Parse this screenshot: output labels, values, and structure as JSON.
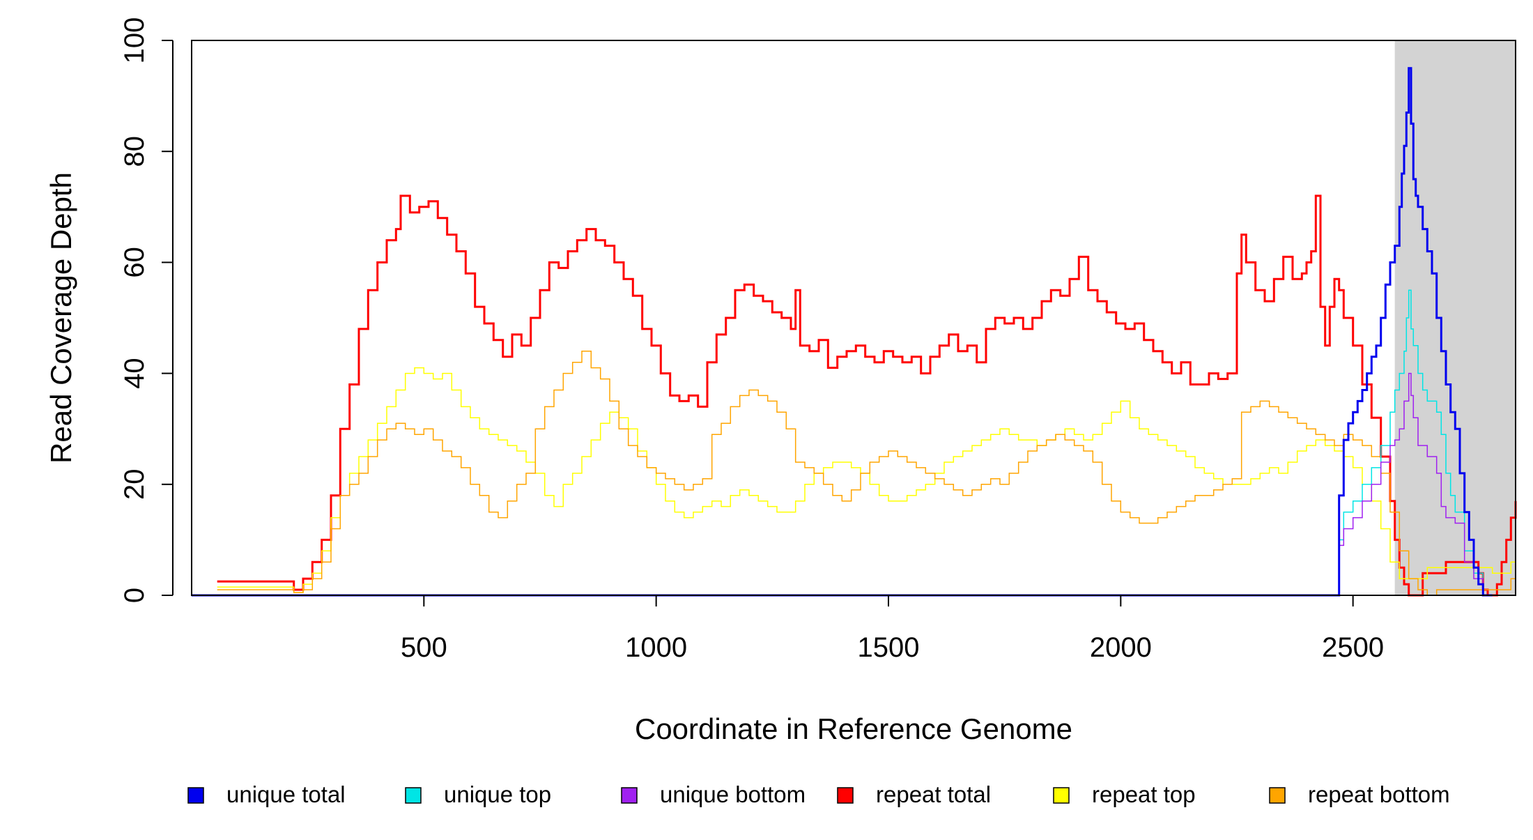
{
  "chart_data": {
    "type": "line",
    "title": "",
    "xlabel": "Coordinate in Reference Genome",
    "ylabel": "Read Coverage Depth",
    "xlim": [
      0,
      2850
    ],
    "ylim": [
      0,
      100
    ],
    "xticks": [
      500,
      1000,
      1500,
      2000,
      2500
    ],
    "yticks": [
      0,
      20,
      40,
      60,
      80,
      100
    ],
    "grid": false,
    "legend_position": "bottom",
    "shaded_region": {
      "x_start": 2590,
      "x_end": 2850,
      "color": "#d3d3d3"
    },
    "series": [
      {
        "name": "unique total",
        "color": "#0000ee",
        "width": 3,
        "x": [
          0,
          2460,
          2470,
          2480,
          2490,
          2500,
          2510,
          2520,
          2530,
          2540,
          2550,
          2560,
          2570,
          2580,
          2590,
          2600,
          2605,
          2610,
          2615,
          2620,
          2625,
          2630,
          2635,
          2640,
          2650,
          2660,
          2670,
          2680,
          2690,
          2700,
          2710,
          2720,
          2730,
          2740,
          2750,
          2760,
          2770,
          2780,
          2785,
          2790,
          2800
        ],
        "y": [
          0,
          0,
          18,
          28,
          31,
          33,
          35,
          37,
          40,
          43,
          45,
          50,
          56,
          60,
          63,
          70,
          76,
          81,
          87,
          95,
          85,
          75,
          72,
          70,
          66,
          62,
          58,
          50,
          44,
          38,
          33,
          30,
          22,
          15,
          10,
          5,
          2,
          0,
          0,
          0,
          0
        ]
      },
      {
        "name": "unique top",
        "color": "#00e5e5",
        "width": 1.5,
        "x": [
          0,
          2460,
          2470,
          2480,
          2500,
          2520,
          2540,
          2560,
          2580,
          2590,
          2600,
          2610,
          2615,
          2620,
          2625,
          2630,
          2640,
          2650,
          2660,
          2670,
          2680,
          2690,
          2700,
          2710,
          2720,
          2740,
          2760,
          2780,
          2800
        ],
        "y": [
          0,
          0,
          10,
          15,
          17,
          20,
          23,
          27,
          33,
          37,
          40,
          44,
          50,
          55,
          48,
          45,
          40,
          37,
          35,
          35,
          33,
          29,
          22,
          18,
          15,
          8,
          4,
          0,
          0
        ]
      },
      {
        "name": "unique bottom",
        "color": "#a020f0",
        "width": 1.5,
        "x": [
          0,
          2460,
          2470,
          2480,
          2500,
          2520,
          2540,
          2560,
          2580,
          2590,
          2600,
          2610,
          2620,
          2625,
          2630,
          2640,
          2660,
          2680,
          2690,
          2700,
          2720,
          2740,
          2760,
          2780,
          2800
        ],
        "y": [
          0,
          0,
          9,
          12,
          14,
          17,
          20,
          24,
          27,
          28,
          30,
          35,
          40,
          36,
          32,
          27,
          25,
          22,
          16,
          14,
          13,
          6,
          3,
          0,
          0
        ]
      },
      {
        "name": "repeat total",
        "color": "#ff0000",
        "width": 3,
        "x": [
          55,
          210,
          220,
          240,
          260,
          280,
          300,
          320,
          340,
          360,
          380,
          400,
          420,
          440,
          450,
          470,
          490,
          510,
          530,
          550,
          570,
          590,
          610,
          630,
          650,
          670,
          690,
          710,
          730,
          750,
          770,
          790,
          810,
          830,
          850,
          870,
          890,
          910,
          930,
          950,
          970,
          990,
          1010,
          1030,
          1050,
          1070,
          1090,
          1110,
          1130,
          1150,
          1170,
          1190,
          1210,
          1230,
          1250,
          1270,
          1290,
          1300,
          1310,
          1330,
          1350,
          1370,
          1390,
          1410,
          1430,
          1450,
          1470,
          1490,
          1510,
          1530,
          1550,
          1570,
          1590,
          1610,
          1630,
          1650,
          1670,
          1690,
          1710,
          1730,
          1750,
          1770,
          1790,
          1810,
          1830,
          1850,
          1870,
          1890,
          1910,
          1930,
          1950,
          1970,
          1990,
          2010,
          2030,
          2050,
          2070,
          2090,
          2110,
          2130,
          2150,
          2170,
          2190,
          2210,
          2230,
          2250,
          2260,
          2270,
          2290,
          2310,
          2330,
          2350,
          2370,
          2390,
          2400,
          2410,
          2420,
          2430,
          2440,
          2450,
          2460,
          2470,
          2480,
          2500,
          2520,
          2540,
          2560,
          2580,
          2590,
          2600,
          2610,
          2620,
          2630,
          2650,
          2700,
          2750,
          2770,
          2780,
          2790,
          2800,
          2810,
          2820,
          2830,
          2840,
          2850
        ],
        "y": [
          2.5,
          2.5,
          1,
          3,
          6,
          10,
          18,
          30,
          38,
          48,
          55,
          60,
          64,
          66,
          72,
          69,
          70,
          71,
          68,
          65,
          62,
          58,
          52,
          49,
          46,
          43,
          47,
          45,
          50,
          55,
          60,
          59,
          62,
          64,
          66,
          64,
          63,
          60,
          57,
          54,
          48,
          45,
          40,
          36,
          35,
          36,
          34,
          42,
          47,
          50,
          55,
          56,
          54,
          53,
          51,
          50,
          48,
          55,
          45,
          44,
          46,
          41,
          43,
          44,
          45,
          43,
          42,
          44,
          43,
          42,
          43,
          40,
          43,
          45,
          47,
          44,
          45,
          42,
          48,
          50,
          49,
          50,
          48,
          50,
          53,
          55,
          54,
          57,
          61,
          55,
          53,
          51,
          49,
          48,
          49,
          46,
          44,
          42,
          40,
          42,
          38,
          38,
          40,
          39,
          40,
          58,
          65,
          60,
          55,
          53,
          57,
          61,
          57,
          58,
          60,
          62,
          72,
          52,
          45,
          52,
          57,
          55,
          50,
          45,
          38,
          32,
          25,
          17,
          10,
          5,
          2,
          0,
          0,
          4,
          6,
          6,
          4,
          1,
          0,
          0,
          2,
          6,
          10,
          14,
          17
        ]
      },
      {
        "name": "repeat top",
        "color": "#ffff00",
        "width": 1.5,
        "x": [
          55,
          210,
          220,
          240,
          260,
          280,
          300,
          320,
          340,
          360,
          380,
          400,
          420,
          440,
          460,
          480,
          500,
          520,
          540,
          560,
          580,
          600,
          620,
          640,
          660,
          680,
          700,
          720,
          740,
          760,
          780,
          800,
          820,
          840,
          860,
          880,
          900,
          920,
          940,
          960,
          980,
          1000,
          1020,
          1040,
          1060,
          1080,
          1100,
          1120,
          1140,
          1160,
          1180,
          1200,
          1220,
          1240,
          1260,
          1280,
          1300,
          1320,
          1340,
          1360,
          1380,
          1400,
          1420,
          1440,
          1460,
          1480,
          1500,
          1520,
          1540,
          1560,
          1580,
          1600,
          1620,
          1640,
          1660,
          1680,
          1700,
          1720,
          1740,
          1760,
          1780,
          1800,
          1820,
          1840,
          1860,
          1880,
          1900,
          1920,
          1940,
          1960,
          1980,
          2000,
          2020,
          2040,
          2060,
          2080,
          2100,
          2120,
          2140,
          2160,
          2180,
          2200,
          2220,
          2240,
          2260,
          2280,
          2300,
          2320,
          2340,
          2360,
          2380,
          2400,
          2420,
          2440,
          2460,
          2480,
          2500,
          2520,
          2540,
          2560,
          2580,
          2600,
          2620,
          2640,
          2660,
          2680,
          2700,
          2720,
          2740,
          2760,
          2780,
          2800,
          2820,
          2840,
          2850
        ],
        "y": [
          1.5,
          1.5,
          0.5,
          2,
          4,
          8,
          14,
          18,
          22,
          25,
          28,
          31,
          34,
          37,
          40,
          41,
          40,
          39,
          40,
          37,
          34,
          32,
          30,
          29,
          28,
          27,
          26,
          24,
          22,
          18,
          16,
          20,
          22,
          25,
          28,
          31,
          33,
          32,
          30,
          26,
          23,
          20,
          17,
          15,
          14,
          15,
          16,
          17,
          16,
          18,
          19,
          18,
          17,
          16,
          15,
          15,
          17,
          20,
          22,
          23,
          24,
          24,
          23,
          22,
          20,
          18,
          17,
          17,
          18,
          19,
          20,
          22,
          24,
          25,
          26,
          27,
          28,
          29,
          30,
          29,
          28,
          28,
          27,
          28,
          29,
          30,
          29,
          28,
          29,
          31,
          33,
          35,
          32,
          30,
          29,
          28,
          27,
          26,
          25,
          23,
          22,
          21,
          20,
          20,
          20,
          21,
          22,
          23,
          22,
          24,
          26,
          27,
          28,
          27,
          26,
          25,
          23,
          20,
          17,
          12,
          6,
          3,
          3,
          3,
          5,
          5,
          5,
          5,
          5,
          5,
          5,
          4,
          4,
          6,
          10
        ]
      },
      {
        "name": "repeat bottom",
        "color": "#ffa500",
        "width": 1.5,
        "x": [
          55,
          210,
          220,
          240,
          260,
          280,
          300,
          320,
          340,
          360,
          380,
          400,
          420,
          440,
          460,
          480,
          500,
          520,
          540,
          560,
          580,
          600,
          620,
          640,
          660,
          680,
          700,
          720,
          740,
          760,
          780,
          800,
          820,
          840,
          860,
          880,
          900,
          920,
          940,
          960,
          980,
          1000,
          1020,
          1040,
          1060,
          1080,
          1100,
          1120,
          1140,
          1160,
          1180,
          1200,
          1220,
          1240,
          1260,
          1280,
          1300,
          1320,
          1340,
          1360,
          1380,
          1400,
          1420,
          1440,
          1460,
          1480,
          1500,
          1520,
          1540,
          1560,
          1580,
          1600,
          1620,
          1640,
          1660,
          1680,
          1700,
          1720,
          1740,
          1760,
          1780,
          1800,
          1820,
          1840,
          1860,
          1880,
          1900,
          1920,
          1940,
          1960,
          1980,
          2000,
          2020,
          2040,
          2060,
          2080,
          2100,
          2120,
          2140,
          2160,
          2180,
          2200,
          2220,
          2240,
          2260,
          2280,
          2300,
          2320,
          2340,
          2360,
          2380,
          2400,
          2420,
          2440,
          2460,
          2480,
          2500,
          2520,
          2540,
          2560,
          2580,
          2600,
          2620,
          2640,
          2660,
          2680,
          2700,
          2720,
          2740,
          2760,
          2780,
          2800,
          2820,
          2840,
          2850
        ],
        "y": [
          1,
          1,
          0.5,
          1,
          3,
          6,
          12,
          18,
          20,
          22,
          25,
          28,
          30,
          31,
          30,
          29,
          30,
          28,
          26,
          25,
          23,
          20,
          18,
          15,
          14,
          17,
          20,
          22,
          30,
          34,
          37,
          40,
          42,
          44,
          41,
          39,
          35,
          30,
          27,
          25,
          23,
          22,
          21,
          20,
          19,
          20,
          21,
          29,
          31,
          34,
          36,
          37,
          36,
          35,
          33,
          30,
          24,
          23,
          22,
          20,
          18,
          17,
          19,
          22,
          24,
          25,
          26,
          25,
          24,
          23,
          22,
          21,
          20,
          19,
          18,
          19,
          20,
          21,
          20,
          22,
          24,
          26,
          27,
          28,
          29,
          28,
          27,
          26,
          24,
          20,
          17,
          15,
          14,
          13,
          13,
          14,
          15,
          16,
          17,
          18,
          18,
          19,
          20,
          21,
          33,
          34,
          35,
          34,
          33,
          32,
          31,
          30,
          29,
          28,
          27,
          29,
          28,
          27,
          25,
          22,
          15,
          8,
          3,
          1,
          0,
          1,
          1,
          1,
          1,
          1,
          1,
          1,
          1,
          3,
          5
        ]
      }
    ]
  }
}
